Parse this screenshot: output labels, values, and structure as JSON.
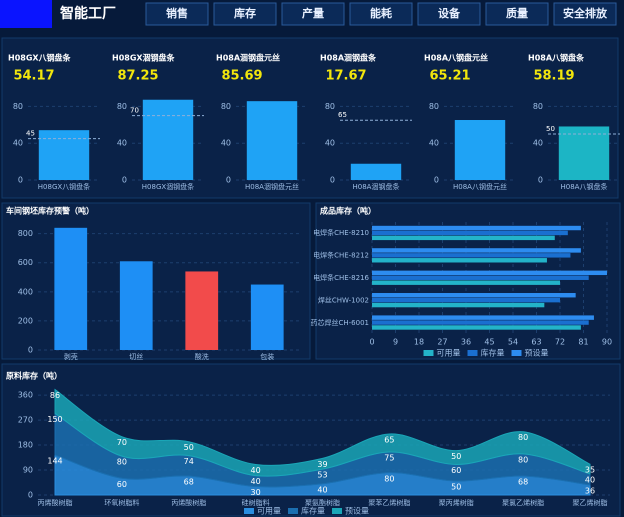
{
  "header": {
    "title": "智能工厂",
    "nav": [
      "销售",
      "库存",
      "产量",
      "能耗",
      "设备",
      "质量",
      "安全排放"
    ]
  },
  "chart_data": [
    {
      "type": "bar",
      "title": "H08GX八钢盘条",
      "categories": [
        "H08GX八钢盘条"
      ],
      "values": [
        54.17
      ],
      "color": "#1fa3f5",
      "ylim": [
        0,
        100
      ],
      "yticks": [
        0,
        40,
        80
      ],
      "markline": 45,
      "grid": true
    },
    {
      "type": "bar",
      "title": "H08GX涸钢盘条",
      "categories": [
        "H08GX涸钢盘条"
      ],
      "values": [
        87.25
      ],
      "color": "#1fa3f5",
      "ylim": [
        0,
        100
      ],
      "yticks": [
        0,
        40,
        80
      ],
      "markline": 70,
      "grid": true
    },
    {
      "type": "bar",
      "title": "H08A涸钢盘元丝",
      "categories": [
        "H08A涸钢盘元丝"
      ],
      "values": [
        85.69
      ],
      "color": "#1fa3f5",
      "ylim": [
        0,
        100
      ],
      "yticks": [
        0,
        40,
        80
      ],
      "grid": true
    },
    {
      "type": "bar",
      "title": "H08A涸钢盘条",
      "categories": [
        "H08A涸钢盘条"
      ],
      "values": [
        17.67
      ],
      "color": "#1fa3f5",
      "ylim": [
        0,
        100
      ],
      "yticks": [
        0,
        40,
        80
      ],
      "markline": 65,
      "grid": true
    },
    {
      "type": "bar",
      "title": "H08A八钢盘元丝",
      "categories": [
        "H08A八钢盘元丝"
      ],
      "values": [
        65.21
      ],
      "color": "#1fa3f5",
      "ylim": [
        0,
        100
      ],
      "yticks": [
        0,
        40,
        80
      ],
      "grid": true
    },
    {
      "type": "bar",
      "title": "H08A八钢盘条",
      "categories": [
        "H08A八钢盘条"
      ],
      "values": [
        58.19
      ],
      "color": "#1cb5c5",
      "ylim": [
        0,
        100
      ],
      "yticks": [
        0,
        40,
        80
      ],
      "markline": 50,
      "grid": true
    },
    {
      "type": "bar",
      "title": "车间钢坯库存预警（吨）",
      "categories": [
        "剥壳",
        "切丝",
        "酸洗",
        "包装"
      ],
      "values": [
        840,
        610,
        540,
        450
      ],
      "colors": [
        "#1e8ff5",
        "#1e8ff5",
        "#f24b4b",
        "#1e8ff5"
      ],
      "ylim": [
        0,
        880
      ],
      "yticks": [
        0,
        200,
        400,
        600,
        800
      ],
      "grid": true
    },
    {
      "type": "hbar",
      "title": "成品库存（吨）",
      "categories": [
        "电焊条CHE-8210",
        "电焊条CHE-8212",
        "电焊条CHE-8216",
        "焊丝CHW-1002",
        "药芯焊丝CH-6001"
      ],
      "series": [
        {
          "name": "可用量",
          "color": "#23b3c9",
          "values": [
            70,
            67,
            72,
            66,
            80
          ]
        },
        {
          "name": "库存量",
          "color": "#1a6fd0",
          "values": [
            75,
            76,
            83,
            72,
            83
          ]
        },
        {
          "name": "预设量",
          "color": "#2d8cf0",
          "values": [
            80,
            80,
            90,
            78,
            85
          ]
        }
      ],
      "xlim": [
        0,
        90
      ],
      "xticks": [
        0,
        9,
        18,
        27,
        36,
        45,
        54,
        63,
        72,
        81,
        90
      ],
      "grid": true
    },
    {
      "type": "area",
      "title": "原料库存（吨）",
      "categories": [
        "丙烯酸树脂",
        "环氧树脂料",
        "丙烯酸树脂",
        "硅树脂料",
        "聚氨酯树脂",
        "聚苯乙烯树脂",
        "聚丙烯树脂",
        "聚氯乙烯树脂",
        "聚乙烯树脂"
      ],
      "series": [
        {
          "name": "可用量",
          "color": "#2a8ee0",
          "values": [
            144,
            60,
            68,
            30,
            40,
            80,
            50,
            68,
            36
          ]
        },
        {
          "name": "库存量",
          "color": "#1b6fb0",
          "values": [
            150,
            80,
            74,
            40,
            53,
            75,
            60,
            80,
            40
          ]
        },
        {
          "name": "预设量",
          "color": "#1aa6b7",
          "values": [
            86,
            70,
            50,
            40,
            39,
            65,
            50,
            80,
            35
          ]
        }
      ],
      "ylim": [
        0,
        400
      ],
      "yticks": [
        0,
        90,
        180,
        270,
        360
      ],
      "stacked": true,
      "grid": true
    }
  ]
}
